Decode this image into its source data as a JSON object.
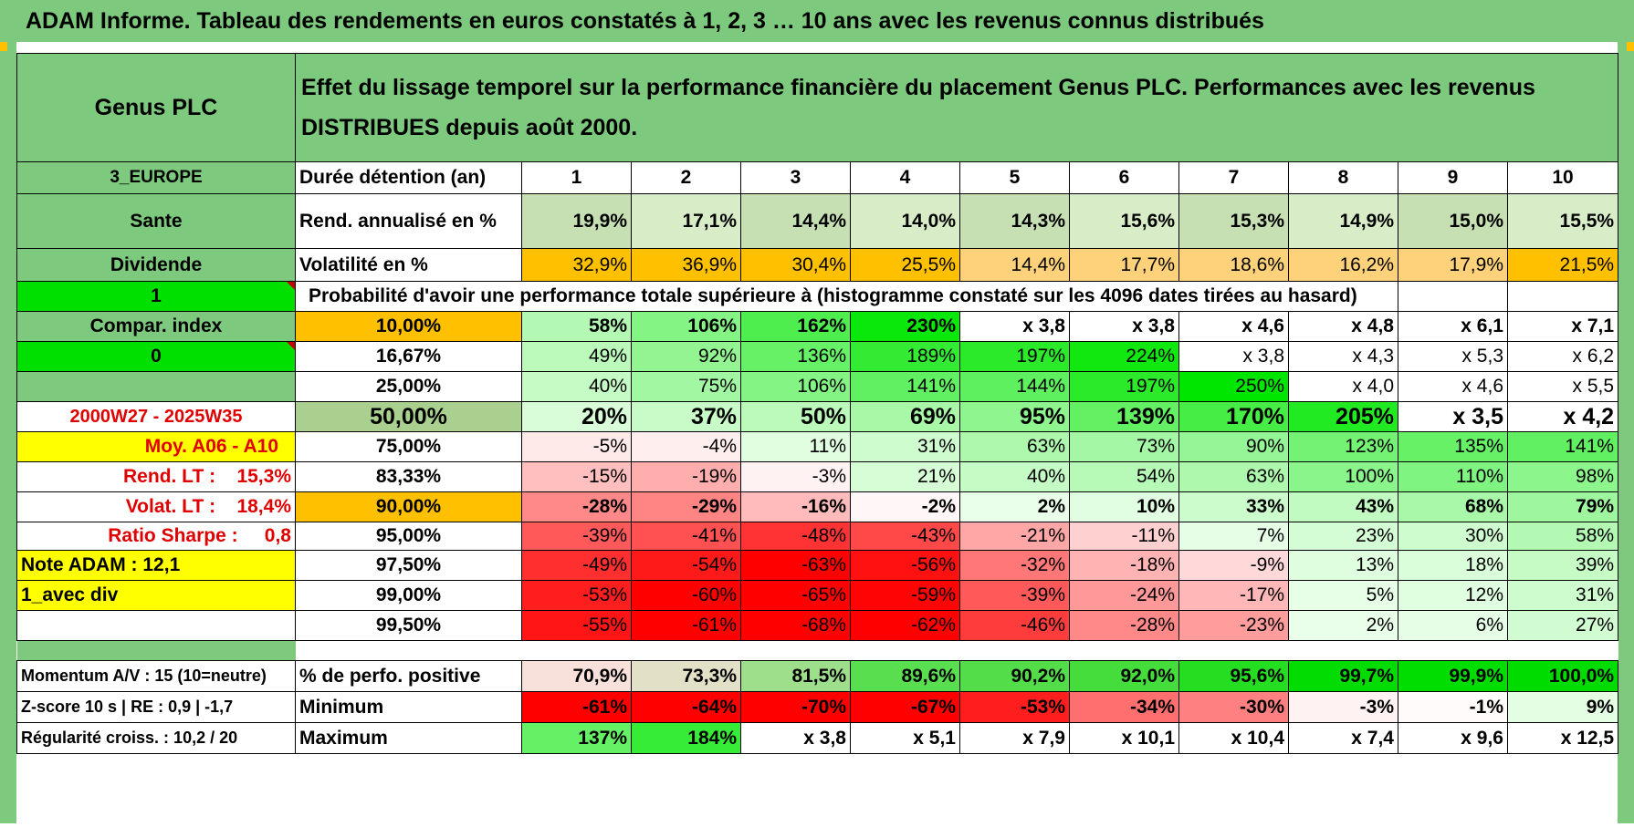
{
  "banner": {
    "title": "ADAM Informe. Tableau des rendements en euros constatés à 1, 2, 3 … 10 ans avec les revenus connus distribués"
  },
  "header": {
    "name": "Genus PLC",
    "description": "Effet du lissage temporel sur la performance financière du placement Genus PLC. Performances avec les revenus DISTRIBUES depuis août 2000."
  },
  "side": {
    "region": "3_EUROPE",
    "sector": "Sante",
    "income_type": "Dividende",
    "flag_one": "1",
    "compar_index": "Compar. index",
    "flag_zero": "0",
    "period": "2000W27 - 2025W35",
    "moy": "Moy. A06 - A10",
    "rend_lt_label": "Rend. LT :",
    "rend_lt_value": "15,3%",
    "volat_lt_label": "Volat. LT :",
    "volat_lt_value": "18,4%",
    "sharpe_label": "Ratio Sharpe :",
    "sharpe_value": "0,8",
    "note_adam": "Note ADAM : 12,1",
    "avec_div": "1_avec div"
  },
  "stats": {
    "holding_label": "Durée détention (an)",
    "years": [
      "1",
      "2",
      "3",
      "4",
      "5",
      "6",
      "7",
      "8",
      "9",
      "10"
    ],
    "rend_label": "Rend. annualisé en %",
    "rend": [
      "19,9%",
      "17,1%",
      "14,4%",
      "14,0%",
      "14,3%",
      "15,6%",
      "15,3%",
      "14,9%",
      "15,0%",
      "15,5%"
    ],
    "vol_label": "Volatilité en %",
    "vol": [
      "32,9%",
      "36,9%",
      "30,4%",
      "25,5%",
      "14,4%",
      "17,7%",
      "18,6%",
      "16,2%",
      "17,9%",
      "21,5%"
    ],
    "prob_title": "Probabilité d'avoir une performance totale supérieure à (histogramme constaté sur les 4096 dates tirées au hasard)"
  },
  "prob_rows": [
    {
      "pct": "10,00%",
      "values": [
        "58%",
        "106%",
        "162%",
        "230%",
        "x 3,8",
        "x 3,8",
        "x 4,6",
        "x 4,8",
        "x 6,1",
        "x 7,1"
      ]
    },
    {
      "pct": "16,67%",
      "values": [
        "49%",
        "92%",
        "136%",
        "189%",
        "197%",
        "224%",
        "x 3,8",
        "x 4,3",
        "x 5,3",
        "x 6,2"
      ]
    },
    {
      "pct": "25,00%",
      "values": [
        "40%",
        "75%",
        "106%",
        "141%",
        "144%",
        "197%",
        "250%",
        "x 4,0",
        "x 4,6",
        "x 5,5"
      ]
    },
    {
      "pct": "50,00%",
      "values": [
        "20%",
        "37%",
        "50%",
        "69%",
        "95%",
        "139%",
        "170%",
        "205%",
        "x 3,5",
        "x 4,2"
      ]
    },
    {
      "pct": "75,00%",
      "values": [
        "-5%",
        "-4%",
        "11%",
        "31%",
        "63%",
        "73%",
        "90%",
        "123%",
        "135%",
        "141%"
      ]
    },
    {
      "pct": "83,33%",
      "values": [
        "-15%",
        "-19%",
        "-3%",
        "21%",
        "40%",
        "54%",
        "63%",
        "100%",
        "110%",
        "98%"
      ]
    },
    {
      "pct": "90,00%",
      "values": [
        "-28%",
        "-29%",
        "-16%",
        "-2%",
        "2%",
        "10%",
        "33%",
        "43%",
        "68%",
        "79%"
      ]
    },
    {
      "pct": "95,00%",
      "values": [
        "-39%",
        "-41%",
        "-48%",
        "-43%",
        "-21%",
        "-11%",
        "7%",
        "23%",
        "30%",
        "58%"
      ]
    },
    {
      "pct": "97,50%",
      "values": [
        "-49%",
        "-54%",
        "-63%",
        "-56%",
        "-32%",
        "-18%",
        "-9%",
        "13%",
        "18%",
        "39%"
      ]
    },
    {
      "pct": "99,00%",
      "values": [
        "-53%",
        "-60%",
        "-65%",
        "-59%",
        "-39%",
        "-24%",
        "-17%",
        "5%",
        "12%",
        "31%"
      ]
    },
    {
      "pct": "99,50%",
      "values": [
        "-55%",
        "-61%",
        "-68%",
        "-62%",
        "-46%",
        "-28%",
        "-23%",
        "2%",
        "6%",
        "27%"
      ]
    }
  ],
  "bottom": {
    "momentum": "Momentum A/V : 15 (10=neutre)",
    "zscore": "Z-score 10 s | RE : 0,9 | -1,7",
    "regularite": "Régularité croiss. : 10,2 / 20",
    "pos_label": "% de perfo. positive",
    "pos": [
      "70,9%",
      "73,3%",
      "81,5%",
      "89,6%",
      "90,2%",
      "92,0%",
      "95,6%",
      "99,7%",
      "99,9%",
      "100,0%"
    ],
    "min_label": "Minimum",
    "min": [
      "-61%",
      "-64%",
      "-70%",
      "-67%",
      "-53%",
      "-34%",
      "-30%",
      "-3%",
      "-1%",
      "9%"
    ],
    "max_label": "Maximum",
    "max": [
      "137%",
      "184%",
      "x 3,8",
      "x 5,1",
      "x 7,9",
      "x 10,1",
      "x 10,4",
      "x 7,4",
      "x 9,6",
      "x 12,5"
    ]
  },
  "colors": {
    "header_green": "#7dc97d",
    "orange": "#ffc000",
    "yellow": "#ffff00",
    "bright_green": "#00e000",
    "red": "#ff0000",
    "label_red": "#e00000"
  }
}
